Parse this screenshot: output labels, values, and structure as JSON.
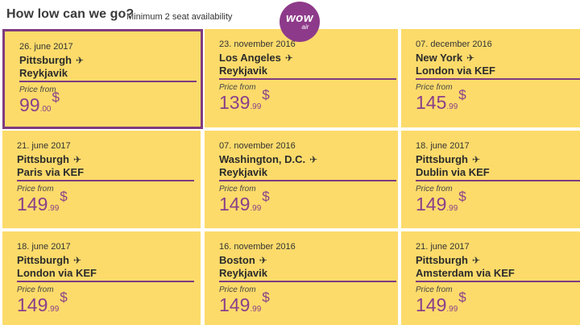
{
  "header": {
    "title": "How low can we go?",
    "subtitle": "Minimum 2 seat availability",
    "logo_text": "wow",
    "logo_subtext": "air"
  },
  "colors": {
    "card_bg": "#fcdb6b",
    "accent": "#7f3b80",
    "logo_bg": "#8e3a8a"
  },
  "deals": [
    {
      "date": "26. june 2017",
      "from": "Pittsburgh",
      "to": "Reykjavik",
      "price_label": "Price from",
      "price_main": "99",
      "price_cents": ".00",
      "currency": "$",
      "selected": true
    },
    {
      "date": "23. november 2016",
      "from": "Los Angeles",
      "to": "Reykjavik",
      "price_label": "Price from",
      "price_main": "139",
      "price_cents": ".99",
      "currency": "$"
    },
    {
      "date": "07. december 2016",
      "from": "New York",
      "to": "London via KEF",
      "price_label": "Price from",
      "price_main": "145",
      "price_cents": ".99",
      "currency": "$"
    },
    {
      "date": "21. june 2017",
      "from": "Pittsburgh",
      "to": "Paris via KEF",
      "price_label": "Price from",
      "price_main": "149",
      "price_cents": ".99",
      "currency": "$"
    },
    {
      "date": "07. november 2016",
      "from": "Washington, D.C.",
      "to": "Reykjavik",
      "price_label": "Price from",
      "price_main": "149",
      "price_cents": ".99",
      "currency": "$"
    },
    {
      "date": "18. june 2017",
      "from": "Pittsburgh",
      "to": "Dublin via KEF",
      "price_label": "Price from",
      "price_main": "149",
      "price_cents": ".99",
      "currency": "$"
    },
    {
      "date": "18. june 2017",
      "from": "Pittsburgh",
      "to": "London via KEF",
      "price_label": "Price from",
      "price_main": "149",
      "price_cents": ".99",
      "currency": "$"
    },
    {
      "date": "16. november 2016",
      "from": "Boston",
      "to": "Reykjavik",
      "price_label": "Price from",
      "price_main": "149",
      "price_cents": ".99",
      "currency": "$"
    },
    {
      "date": "21. june 2017",
      "from": "Pittsburgh",
      "to": "Amsterdam via KEF",
      "price_label": "Price from",
      "price_main": "149",
      "price_cents": ".99",
      "currency": "$"
    }
  ]
}
